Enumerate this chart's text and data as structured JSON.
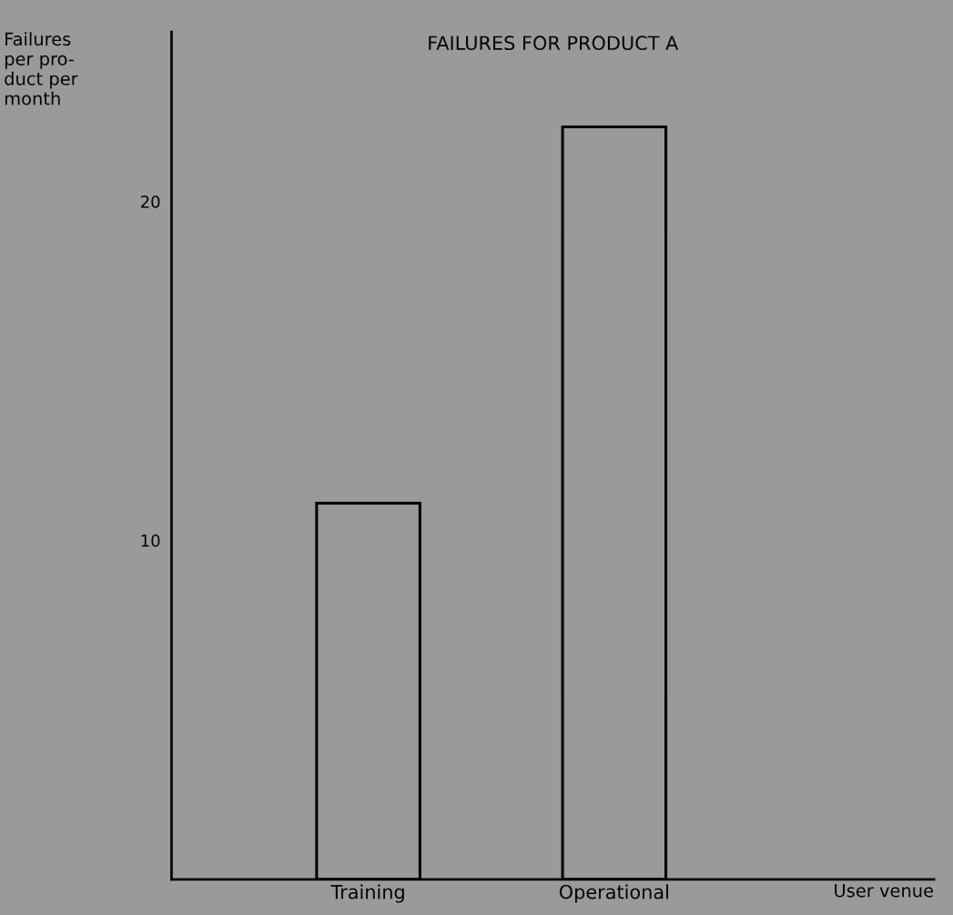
{
  "chart_data": {
    "type": "bar",
    "title": "FAILURES FOR PRODUCT A",
    "ylabel": "Failures\nper pro-\nduct per\nmonth",
    "xlabel": "User venue",
    "categories": [
      "Training",
      "Operational"
    ],
    "values": [
      11.1,
      22.2
    ],
    "color": "#000000",
    "ylim": [
      0,
      25
    ],
    "yticks": [
      10,
      20
    ],
    "grid": false
  }
}
